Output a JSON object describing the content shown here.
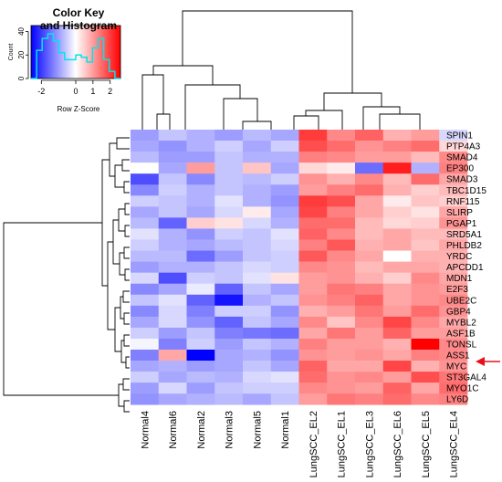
{
  "chart_data": {
    "type": "heatmap",
    "title": "",
    "color_key": {
      "title_line1": "Color Key",
      "title_line2": "and Histogram",
      "ylabel": "Count",
      "xlabel": "Row Z-Score",
      "x_ticks": [
        "-2",
        "0",
        "1",
        "2"
      ],
      "y_ticks": [
        "0",
        "20",
        "40"
      ],
      "x_range": [
        -2.6,
        2.6
      ],
      "y_range": [
        0,
        45
      ],
      "histogram": [
        0,
        24,
        34,
        38,
        32,
        22,
        16,
        16,
        20,
        18,
        14,
        26,
        34,
        16,
        6,
        0
      ],
      "colors": {
        "low": "#0000ff",
        "mid": "#ffffff",
        "high": "#ff0000",
        "histogram": "#00ffff"
      }
    },
    "columns": [
      "Normal4",
      "Normal6",
      "Normal2",
      "Normal3",
      "Normal5",
      "Normal1",
      "LungSCC_EL2",
      "LungSCC_EL1",
      "LungSCC_EL3",
      "LungSCC_EL6",
      "LungSCC_EL5",
      "LungSCC_EL4"
    ],
    "rows": [
      "SPIN1",
      "PTP4A3",
      "SMAD4",
      "EP300",
      "SMAD3",
      "TBC1D15",
      "RNF115",
      "SLIRP",
      "PGAP1",
      "SRD5A1",
      "PHLDB2",
      "YRDC",
      "APCDD1",
      "MDN1",
      "E2F3",
      "UBE2C",
      "GBP4",
      "MYBL2",
      "ASF1B",
      "TONSL",
      "ASS1",
      "MYC",
      "ST3GAL4",
      "MYO1C",
      "LY6D"
    ],
    "values": [
      [
        -1.0,
        -0.6,
        -0.8,
        -1.0,
        -0.7,
        -0.9,
        2.0,
        1.2,
        1.6,
        0.8,
        1.0,
        -0.4
      ],
      [
        -0.9,
        -1.1,
        -0.8,
        -0.5,
        -0.9,
        -0.5,
        1.8,
        1.5,
        1.1,
        1.3,
        1.5,
        0.4
      ],
      [
        -0.7,
        -1.0,
        -1.0,
        -0.6,
        -0.8,
        -0.8,
        1.3,
        1.2,
        1.0,
        1.0,
        0.7,
        1.2
      ],
      [
        0.0,
        -0.9,
        1.0,
        -0.6,
        0.6,
        -0.9,
        0.4,
        0.2,
        -1.5,
        2.3,
        -0.8,
        1.3
      ],
      [
        -1.8,
        -0.6,
        -1.2,
        -0.6,
        -0.7,
        -0.5,
        1.1,
        0.8,
        1.2,
        0.7,
        1.5,
        0.9
      ],
      [
        -1.2,
        -0.5,
        -0.8,
        -0.6,
        -0.8,
        -1.0,
        1.0,
        1.3,
        1.5,
        0.8,
        0.5,
        0.7
      ],
      [
        -0.5,
        -0.6,
        -0.8,
        -0.3,
        -0.8,
        -1.1,
        2.0,
        1.8,
        0.9,
        0.2,
        0.6,
        0.5
      ],
      [
        -0.9,
        -0.6,
        -0.9,
        -0.4,
        0.2,
        -0.9,
        1.9,
        1.3,
        0.9,
        0.5,
        0.3,
        0.9
      ],
      [
        -0.7,
        -1.6,
        0.5,
        0.3,
        -0.4,
        -0.8,
        1.5,
        1.5,
        0.7,
        0.4,
        0.5,
        1.1
      ],
      [
        -0.3,
        -0.8,
        -1.1,
        -0.5,
        -0.6,
        -0.3,
        1.6,
        1.2,
        0.7,
        0.9,
        0.7,
        0.7
      ],
      [
        -0.5,
        -0.8,
        -0.9,
        -0.7,
        -0.6,
        -0.4,
        1.3,
        1.7,
        0.8,
        0.9,
        0.6,
        0.9
      ],
      [
        -0.7,
        -0.7,
        -1.5,
        -1.0,
        -0.6,
        -0.5,
        1.7,
        1.2,
        0.9,
        0.0,
        0.8,
        0.8
      ],
      [
        -1.0,
        -0.8,
        -0.8,
        -0.6,
        -0.4,
        -0.5,
        1.2,
        1.1,
        0.7,
        0.9,
        0.9,
        0.8
      ],
      [
        -0.4,
        -1.8,
        -0.5,
        -0.6,
        -0.3,
        0.3,
        1.0,
        1.1,
        0.8,
        0.5,
        1.2,
        0.9
      ],
      [
        -1.2,
        -0.9,
        -0.2,
        -1.6,
        -0.6,
        -0.9,
        1.0,
        1.4,
        1.3,
        0.9,
        1.1,
        1.0
      ],
      [
        -0.6,
        -0.3,
        -1.6,
        -2.4,
        -0.8,
        -0.6,
        1.1,
        1.3,
        1.6,
        0.9,
        1.1,
        1.2
      ],
      [
        -1.2,
        -0.4,
        -1.3,
        -0.5,
        -0.5,
        -1.1,
        0.8,
        1.0,
        1.4,
        1.0,
        1.5,
        1.1
      ],
      [
        -0.9,
        -0.4,
        -1.1,
        -1.6,
        -0.6,
        -0.9,
        1.2,
        0.6,
        1.2,
        1.9,
        1.2,
        0.9
      ],
      [
        -0.5,
        -1.0,
        -0.6,
        -1.3,
        -1.4,
        -1.5,
        0.9,
        1.4,
        1.0,
        1.6,
        1.0,
        1.0
      ],
      [
        -0.1,
        -1.3,
        -0.5,
        -1.0,
        -0.6,
        -0.8,
        1.3,
        1.0,
        1.0,
        0.8,
        2.6,
        1.2
      ],
      [
        -1.3,
        0.9,
        -2.6,
        -0.9,
        -0.8,
        -1.1,
        1.1,
        1.0,
        1.1,
        0.9,
        1.3,
        1.2
      ],
      [
        -0.9,
        -0.8,
        -1.0,
        -0.9,
        -0.6,
        -0.9,
        1.6,
        0.9,
        0.9,
        1.9,
        0.8,
        1.1
      ],
      [
        -0.5,
        -0.9,
        -0.7,
        -0.8,
        -0.4,
        -0.3,
        1.5,
        1.1,
        1.2,
        1.0,
        1.8,
        1.4
      ],
      [
        -1.0,
        -0.4,
        -1.0,
        -0.6,
        -0.5,
        -0.5,
        1.2,
        1.1,
        1.0,
        1.6,
        0.9,
        1.5
      ],
      [
        -1.1,
        -0.9,
        -0.8,
        -0.7,
        -0.9,
        -0.6,
        1.0,
        1.4,
        1.3,
        1.5,
        1.2,
        1.3
      ]
    ],
    "highlight": {
      "row": "MYC",
      "marker": "arrow",
      "color": "#e8101a"
    }
  }
}
